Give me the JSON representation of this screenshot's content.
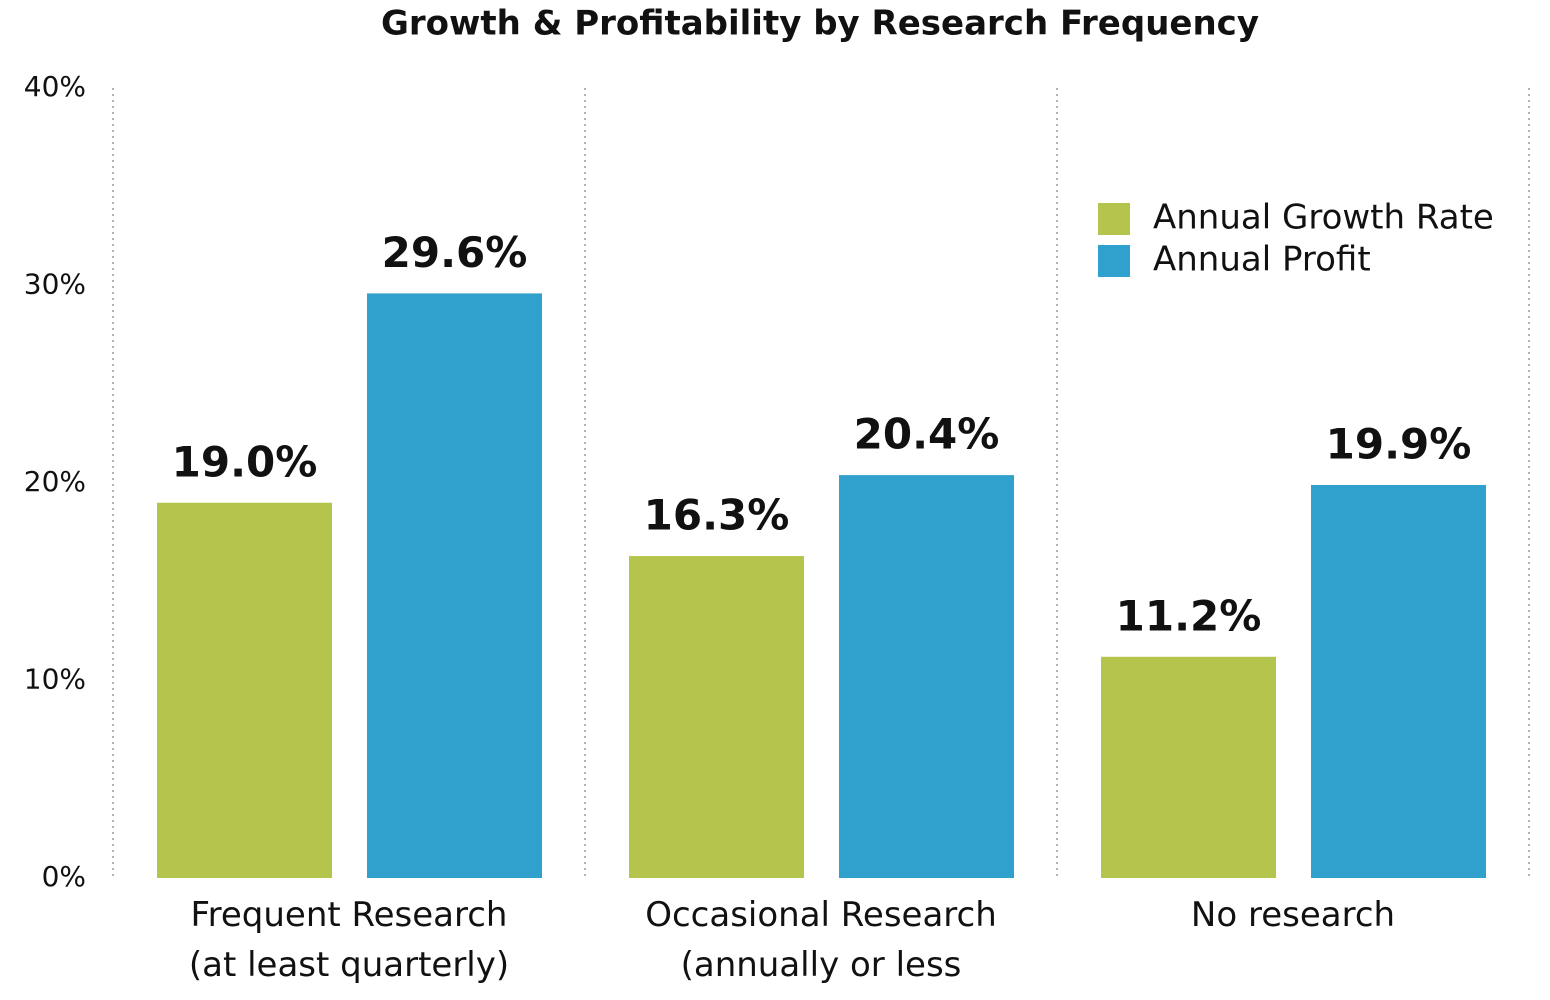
{
  "chart_data": {
    "type": "bar",
    "title": "Growth & Profitability by Research Frequency",
    "categories": [
      "Frequent Research\n(at least quarterly)",
      "Occasional Research\n(annually or less frequently)",
      "No research"
    ],
    "series": [
      {
        "name": "Annual Growth Rate",
        "color": "#b5c44d",
        "values": [
          19.0,
          16.3,
          11.2
        ],
        "value_labels": [
          "19.0%",
          "16.3%",
          "11.2%"
        ]
      },
      {
        "name": "Annual Profit",
        "color": "#30a1cc",
        "values": [
          29.6,
          20.4,
          19.9
        ],
        "value_labels": [
          "29.6%",
          "20.4%",
          "19.9%"
        ]
      }
    ],
    "ylim": [
      0,
      40
    ],
    "yticks": [
      {
        "value": 0,
        "label": "0%"
      },
      {
        "value": 10,
        "label": "10%"
      },
      {
        "value": 20,
        "label": "20%"
      },
      {
        "value": 30,
        "label": "30%"
      },
      {
        "value": 40,
        "label": "40%"
      }
    ],
    "legend": "upper right"
  }
}
